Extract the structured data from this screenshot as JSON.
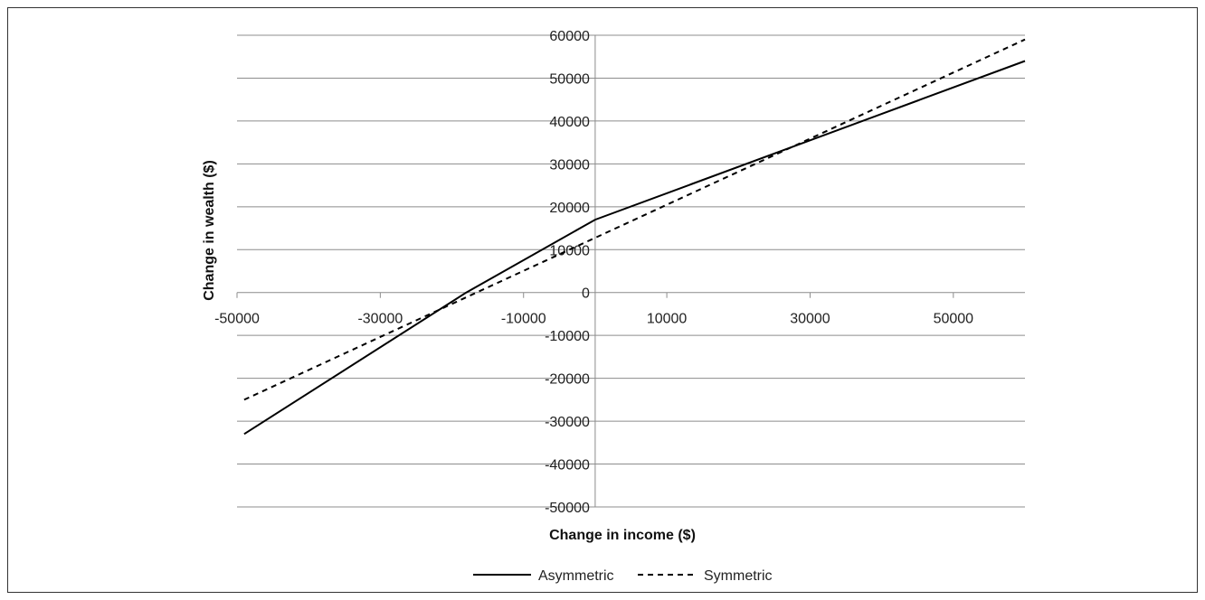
{
  "chart_data": {
    "type": "line",
    "xlabel": "Change in income ($)",
    "ylabel": "Change in wealth ($)",
    "xlim": [
      -50000,
      60000
    ],
    "ylim": [
      -50000,
      60000
    ],
    "x_ticks": [
      -50000,
      -30000,
      -10000,
      10000,
      30000,
      50000
    ],
    "x_tick_labels": [
      "-50000",
      "-30000",
      "-10000",
      "10000",
      "30000",
      "50000"
    ],
    "y_ticks": [
      60000,
      50000,
      40000,
      30000,
      20000,
      10000,
      0,
      -10000,
      -20000,
      -30000,
      -40000,
      -50000
    ],
    "y_tick_labels": [
      "60000",
      "50000",
      "40000",
      "30000",
      "20000",
      "10000",
      "0",
      "-10000",
      "-20000",
      "-30000",
      "-40000",
      "-50000"
    ],
    "grid": "horizontal",
    "legend_position": "bottom",
    "series": [
      {
        "name": "Asymmetric",
        "style": "solid",
        "x": [
          -49000,
          -18000,
          0,
          60000
        ],
        "y": [
          -33000,
          0,
          17000,
          54000
        ]
      },
      {
        "name": "Symmetric",
        "style": "dashed",
        "x": [
          -49000,
          60000
        ],
        "y": [
          -25000,
          59000
        ]
      }
    ]
  }
}
